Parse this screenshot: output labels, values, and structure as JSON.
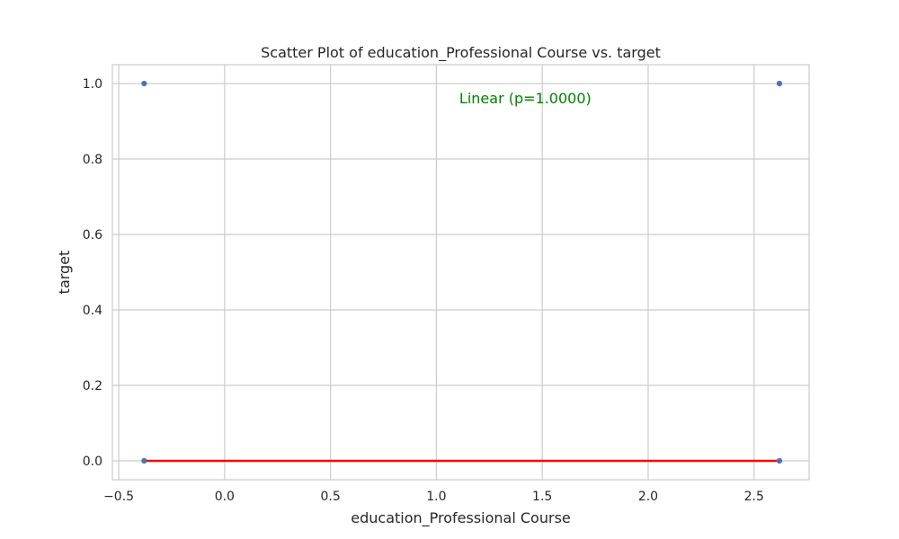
{
  "chart_data": {
    "type": "scatter",
    "title": "Scatter Plot of education_Professional Course vs. target",
    "xlabel": "education_Professional Course",
    "ylabel": "target",
    "xlim": [
      -0.53,
      2.76
    ],
    "ylim": [
      -0.05,
      1.05
    ],
    "xticks": [
      -0.5,
      0.0,
      0.5,
      1.0,
      1.5,
      2.0,
      2.5
    ],
    "xtick_labels": [
      "−0.5",
      "0.0",
      "0.5",
      "1.0",
      "1.5",
      "2.0",
      "2.5"
    ],
    "yticks": [
      0.0,
      0.2,
      0.4,
      0.6,
      0.8,
      1.0
    ],
    "ytick_labels": [
      "0.0",
      "0.2",
      "0.4",
      "0.6",
      "0.8",
      "1.0"
    ],
    "grid": true,
    "series": [
      {
        "type": "scatter",
        "points": [
          {
            "x": -0.38,
            "y": 1.0
          },
          {
            "x": 2.62,
            "y": 1.0
          },
          {
            "x": -0.38,
            "y": 0.0
          },
          {
            "x": 2.62,
            "y": 0.0
          }
        ],
        "color": "#4c72b0"
      },
      {
        "type": "line",
        "points": [
          {
            "x": -0.38,
            "y": 0.0
          },
          {
            "x": 2.62,
            "y": 0.0
          }
        ],
        "color": "#ff0000"
      }
    ],
    "annotation": {
      "text": "Linear (p=1.0000)",
      "x": 1.42,
      "y": 0.955,
      "color": "#008000"
    }
  }
}
